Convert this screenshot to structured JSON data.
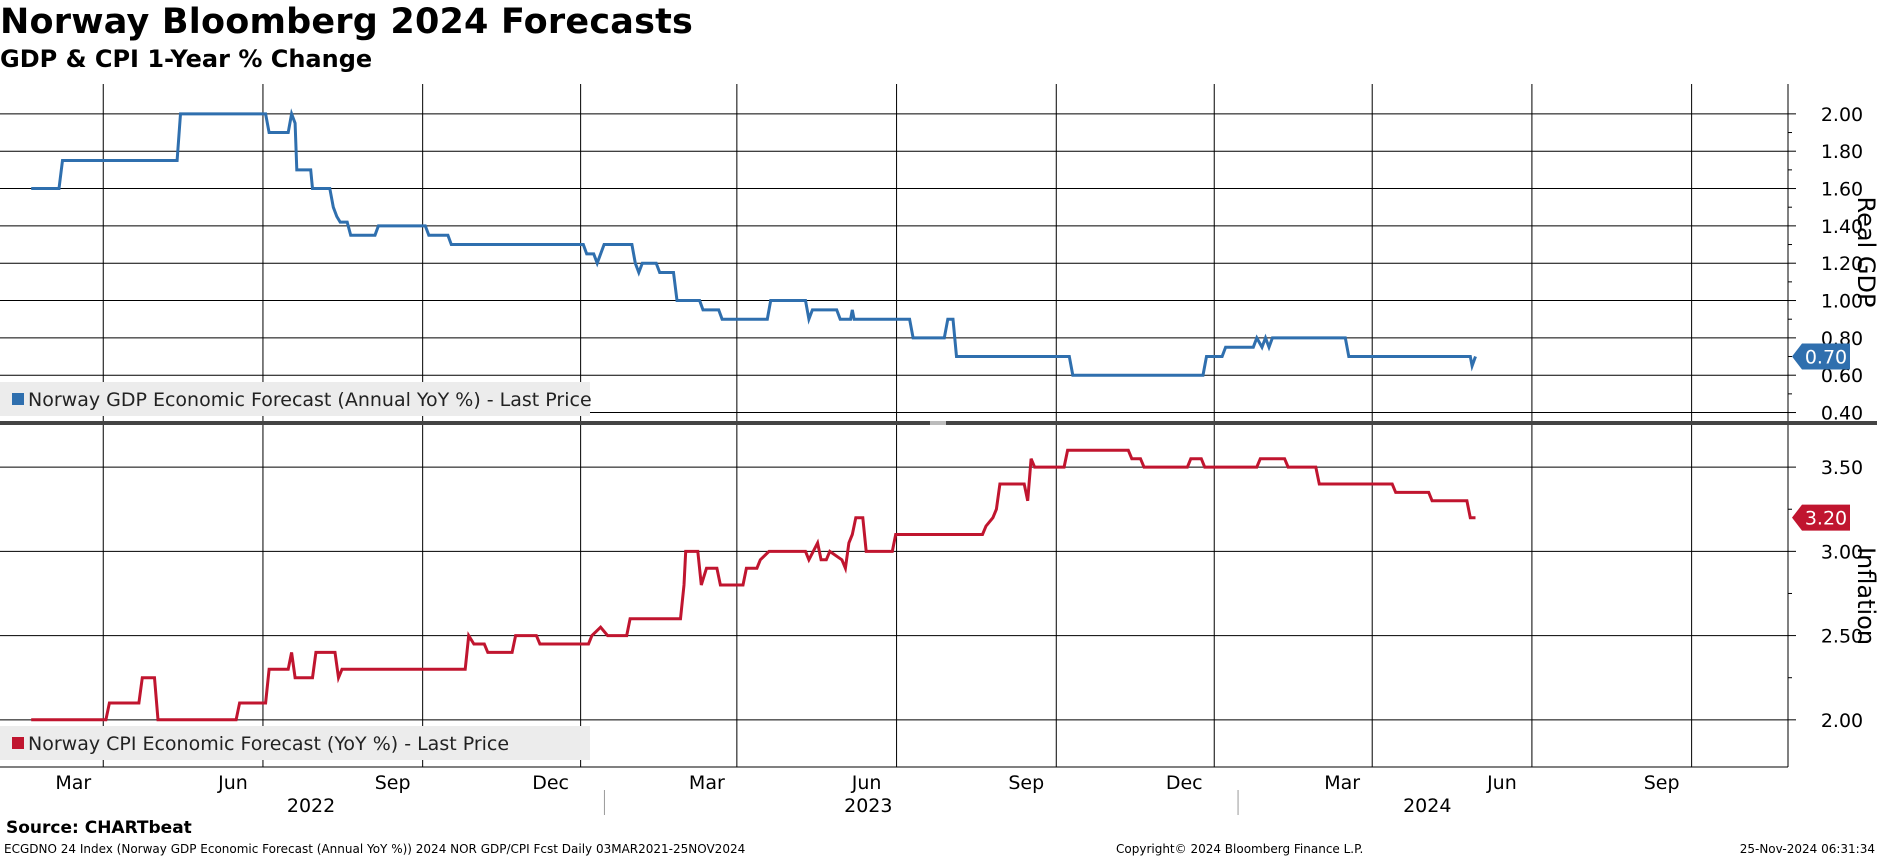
{
  "title": "Norway Bloomberg 2024 Forecasts",
  "subtitle": "GDP & CPI 1-Year % Change",
  "source": "Source: CHARTbeat",
  "footer": {
    "left": "ECGDNO 24 Index (Norway GDP Economic Forecast (Annual YoY %)) 2024 NOR GDP/CPI Fcst  Daily 03MAR2021-25NOV2024",
    "center": "Copyright© 2024 Bloomberg Finance L.P.",
    "right": "25-Nov-2024 06:31:34"
  },
  "chart_data": [
    {
      "type": "line",
      "panel": "top",
      "axis_title": "Real GDP",
      "legend": "Norway GDP Economic Forecast (Annual YoY %) - Last Price",
      "color": "#2F6FAE",
      "ylim": [
        0.36,
        2.16
      ],
      "yticks": [
        0.4,
        0.6,
        0.8,
        1.0,
        1.2,
        1.4,
        1.6,
        1.8,
        2.0
      ],
      "ytick_labels": [
        "0.40",
        "0.60",
        "0.80",
        "1.00",
        "1.20",
        "1.40",
        "1.60",
        "1.80",
        "2.00"
      ],
      "last_value_label": "0.70",
      "last_value": 0.7,
      "points": [
        [
          0,
          1.6
        ],
        [
          16,
          1.6
        ],
        [
          18,
          1.75
        ],
        [
          84,
          1.75
        ],
        [
          86,
          2.0
        ],
        [
          135,
          2.0
        ],
        [
          137,
          1.9
        ],
        [
          148,
          1.9
        ],
        [
          150,
          2.0
        ],
        [
          152,
          1.95
        ],
        [
          153,
          1.7
        ],
        [
          161,
          1.7
        ],
        [
          162,
          1.6
        ],
        [
          172,
          1.6
        ],
        [
          174,
          1.5
        ],
        [
          176,
          1.45
        ],
        [
          178,
          1.42
        ],
        [
          182,
          1.42
        ],
        [
          184,
          1.35
        ],
        [
          198,
          1.35
        ],
        [
          200,
          1.4
        ],
        [
          227,
          1.4
        ],
        [
          229,
          1.35
        ],
        [
          240,
          1.35
        ],
        [
          242,
          1.3
        ],
        [
          318,
          1.3
        ],
        [
          320,
          1.25
        ],
        [
          324,
          1.25
        ],
        [
          326,
          1.2
        ],
        [
          330,
          1.3
        ],
        [
          346,
          1.3
        ],
        [
          348,
          1.2
        ],
        [
          350,
          1.15
        ],
        [
          352,
          1.2
        ],
        [
          360,
          1.2
        ],
        [
          362,
          1.15
        ],
        [
          370,
          1.15
        ],
        [
          372,
          1.0
        ],
        [
          385,
          1.0
        ],
        [
          387,
          0.95
        ],
        [
          396,
          0.95
        ],
        [
          398,
          0.9
        ],
        [
          424,
          0.9
        ],
        [
          426,
          1.0
        ],
        [
          446,
          1.0
        ],
        [
          448,
          0.9
        ],
        [
          450,
          0.95
        ],
        [
          464,
          0.95
        ],
        [
          466,
          0.9
        ],
        [
          472,
          0.9
        ],
        [
          473,
          0.95
        ],
        [
          474,
          0.9
        ],
        [
          506,
          0.9
        ],
        [
          508,
          0.8
        ],
        [
          526,
          0.8
        ],
        [
          528,
          0.9
        ],
        [
          531,
          0.9
        ],
        [
          533,
          0.7
        ],
        [
          598,
          0.7
        ],
        [
          600,
          0.6
        ],
        [
          675,
          0.6
        ],
        [
          677,
          0.7
        ],
        [
          686,
          0.7
        ],
        [
          688,
          0.75
        ],
        [
          704,
          0.75
        ],
        [
          706,
          0.8
        ],
        [
          709,
          0.75
        ],
        [
          711,
          0.8
        ],
        [
          713,
          0.75
        ],
        [
          715,
          0.8
        ],
        [
          757,
          0.8
        ],
        [
          759,
          0.7
        ],
        [
          829,
          0.7
        ],
        [
          830,
          0.65
        ],
        [
          832,
          0.7
        ]
      ]
    },
    {
      "type": "line",
      "panel": "bottom",
      "axis_title": "Inflation",
      "legend": "Norway CPI Economic Forecast (YoY %) - Last Price",
      "color": "#C0152F",
      "ylim": [
        1.72,
        3.75
      ],
      "yticks": [
        2.0,
        2.5,
        3.0,
        3.5
      ],
      "ytick_labels": [
        "2.00",
        "2.50",
        "3.00",
        "3.50"
      ],
      "last_value_label": "3.20",
      "last_value": 3.2,
      "points": [
        [
          0,
          2.0
        ],
        [
          43,
          2.0
        ],
        [
          45,
          2.1
        ],
        [
          62,
          2.1
        ],
        [
          64,
          2.25
        ],
        [
          71,
          2.25
        ],
        [
          73,
          2.0
        ],
        [
          118,
          2.0
        ],
        [
          120,
          2.1
        ],
        [
          135,
          2.1
        ],
        [
          137,
          2.3
        ],
        [
          148,
          2.3
        ],
        [
          150,
          2.4
        ],
        [
          152,
          2.25
        ],
        [
          162,
          2.25
        ],
        [
          164,
          2.4
        ],
        [
          175,
          2.4
        ],
        [
          177,
          2.25
        ],
        [
          179,
          2.3
        ],
        [
          250,
          2.3
        ],
        [
          252,
          2.5
        ],
        [
          255,
          2.45
        ],
        [
          261,
          2.45
        ],
        [
          263,
          2.4
        ],
        [
          277,
          2.4
        ],
        [
          279,
          2.5
        ],
        [
          291,
          2.5
        ],
        [
          293,
          2.45
        ],
        [
          321,
          2.45
        ],
        [
          323,
          2.5
        ],
        [
          328,
          2.55
        ],
        [
          332,
          2.5
        ],
        [
          343,
          2.5
        ],
        [
          345,
          2.6
        ],
        [
          374,
          2.6
        ],
        [
          376,
          2.8
        ],
        [
          377,
          3.0
        ],
        [
          384,
          3.0
        ],
        [
          386,
          2.8
        ],
        [
          389,
          2.9
        ],
        [
          395,
          2.9
        ],
        [
          397,
          2.8
        ],
        [
          410,
          2.8
        ],
        [
          412,
          2.9
        ],
        [
          418,
          2.9
        ],
        [
          420,
          2.95
        ],
        [
          425,
          3.0
        ],
        [
          446,
          3.0
        ],
        [
          448,
          2.95
        ],
        [
          453,
          3.05
        ],
        [
          455,
          2.95
        ],
        [
          458,
          2.95
        ],
        [
          460,
          3.0
        ],
        [
          467,
          2.95
        ],
        [
          469,
          2.9
        ],
        [
          471,
          3.05
        ],
        [
          473,
          3.1
        ],
        [
          475,
          3.2
        ],
        [
          479,
          3.2
        ],
        [
          481,
          3.0
        ],
        [
          496,
          3.0
        ],
        [
          498,
          3.1
        ],
        [
          548,
          3.1
        ],
        [
          550,
          3.15
        ],
        [
          554,
          3.2
        ],
        [
          556,
          3.25
        ],
        [
          558,
          3.4
        ],
        [
          572,
          3.4
        ],
        [
          574,
          3.3
        ],
        [
          576,
          3.55
        ],
        [
          578,
          3.5
        ],
        [
          595,
          3.5
        ],
        [
          597,
          3.6
        ],
        [
          632,
          3.6
        ],
        [
          634,
          3.55
        ],
        [
          639,
          3.55
        ],
        [
          641,
          3.5
        ],
        [
          666,
          3.5
        ],
        [
          668,
          3.55
        ],
        [
          674,
          3.55
        ],
        [
          676,
          3.5
        ],
        [
          706,
          3.5
        ],
        [
          708,
          3.55
        ],
        [
          722,
          3.55
        ],
        [
          724,
          3.5
        ],
        [
          740,
          3.5
        ],
        [
          742,
          3.4
        ],
        [
          784,
          3.4
        ],
        [
          786,
          3.35
        ],
        [
          805,
          3.35
        ],
        [
          807,
          3.3
        ],
        [
          827,
          3.3
        ],
        [
          829,
          3.2
        ],
        [
          832,
          3.2
        ]
      ]
    }
  ],
  "x_axis": {
    "months": [
      {
        "label": "Mar",
        "day": 0
      },
      {
        "label": "Jun",
        "day": 92
      },
      {
        "label": "Sep",
        "day": 184
      },
      {
        "label": "Dec",
        "day": 275
      },
      {
        "label": "Mar",
        "day": 365
      },
      {
        "label": "Jun",
        "day": 457
      },
      {
        "label": "Sep",
        "day": 549
      },
      {
        "label": "Dec",
        "day": 640
      },
      {
        "label": "Mar",
        "day": 731
      },
      {
        "label": "Jun",
        "day": 823
      },
      {
        "label": "Sep",
        "day": 915
      }
    ],
    "years": [
      {
        "label": "2022",
        "day": 137
      },
      {
        "label": "2023",
        "day": 458
      },
      {
        "label": "2024",
        "day": 780
      }
    ],
    "year_separators": [
      306,
      671
    ],
    "domain": [
      -18,
      1012
    ],
    "value_scale": 1.1,
    "offset_days": 0
  }
}
